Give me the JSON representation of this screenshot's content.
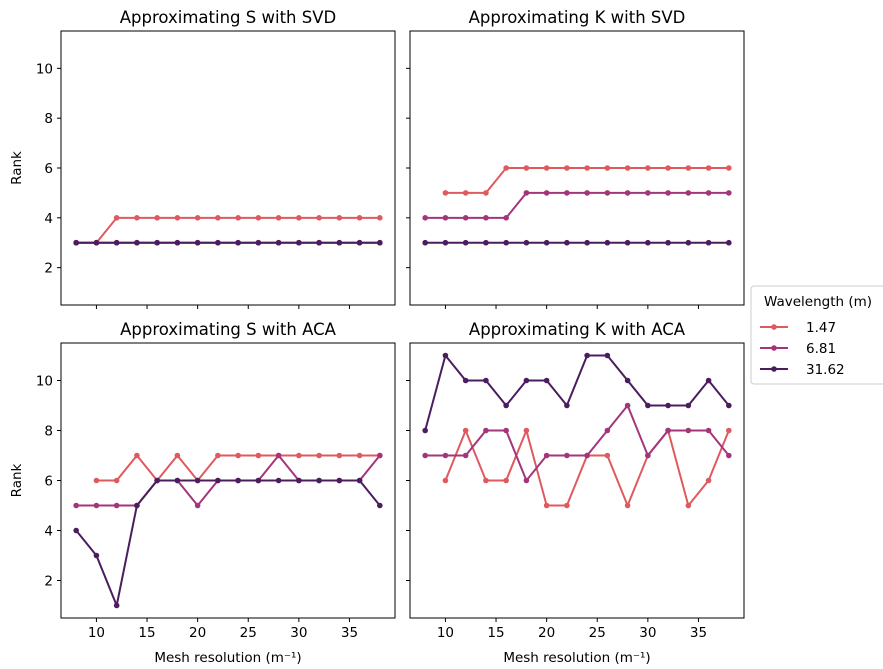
{
  "chart_data": {
    "type": "line",
    "grid": false,
    "legend": {
      "title": "Wavelength (m)",
      "placement": "right",
      "entries": [
        "1.47",
        "6.81",
        "31.62"
      ],
      "colors": [
        "#df5a5f",
        "#a3367b",
        "#4b1d5f"
      ]
    },
    "shared_x": {
      "label": "Mesh resolution (m⁻¹)",
      "ticks": [
        "10",
        "15",
        "20",
        "25",
        "30",
        "35"
      ],
      "tick_values": [
        10,
        15,
        20,
        25,
        30,
        35
      ],
      "range": [
        6.5,
        39.5
      ]
    },
    "shared_y": {
      "label": "Rank",
      "ticks": [
        "2",
        "4",
        "6",
        "8",
        "10"
      ],
      "tick_values": [
        2,
        4,
        6,
        8,
        10
      ],
      "range": [
        0.5,
        11.5
      ]
    },
    "panels": [
      {
        "title": "Approximating S with SVD",
        "series": [
          {
            "name": "1.47",
            "x": [
              8,
              10,
              12,
              14,
              16,
              18,
              20,
              22,
              24,
              26,
              28,
              30,
              32,
              34,
              36,
              38
            ],
            "y": [
              3,
              3,
              4,
              4,
              4,
              4,
              4,
              4,
              4,
              4,
              4,
              4,
              4,
              4,
              4,
              4
            ]
          },
          {
            "name": "6.81",
            "x": [
              8,
              10,
              12,
              14,
              16,
              18,
              20,
              22,
              24,
              26,
              28,
              30,
              32,
              34,
              36,
              38
            ],
            "y": [
              3,
              3,
              3,
              3,
              3,
              3,
              3,
              3,
              3,
              3,
              3,
              3,
              3,
              3,
              3,
              3
            ]
          },
          {
            "name": "31.62",
            "x": [
              8,
              10,
              12,
              14,
              16,
              18,
              20,
              22,
              24,
              26,
              28,
              30,
              32,
              34,
              36,
              38
            ],
            "y": [
              3,
              3,
              3,
              3,
              3,
              3,
              3,
              3,
              3,
              3,
              3,
              3,
              3,
              3,
              3,
              3
            ]
          }
        ]
      },
      {
        "title": "Approximating K with SVD",
        "series": [
          {
            "name": "1.47",
            "x": [
              10,
              12,
              14,
              16,
              18,
              20,
              22,
              24,
              26,
              28,
              30,
              32,
              34,
              36,
              38
            ],
            "y": [
              5,
              5,
              5,
              6,
              6,
              6,
              6,
              6,
              6,
              6,
              6,
              6,
              6,
              6,
              6
            ]
          },
          {
            "name": "6.81",
            "x": [
              8,
              10,
              12,
              14,
              16,
              18,
              20,
              22,
              24,
              26,
              28,
              30,
              32,
              34,
              36,
              38
            ],
            "y": [
              4,
              4,
              4,
              4,
              4,
              5,
              5,
              5,
              5,
              5,
              5,
              5,
              5,
              5,
              5,
              5
            ]
          },
          {
            "name": "31.62",
            "x": [
              8,
              10,
              12,
              14,
              16,
              18,
              20,
              22,
              24,
              26,
              28,
              30,
              32,
              34,
              36,
              38
            ],
            "y": [
              3,
              3,
              3,
              3,
              3,
              3,
              3,
              3,
              3,
              3,
              3,
              3,
              3,
              3,
              3,
              3
            ]
          }
        ]
      },
      {
        "title": "Approximating S with ACA",
        "series": [
          {
            "name": "1.47",
            "x": [
              10,
              12,
              14,
              16,
              18,
              20,
              22,
              24,
              26,
              28,
              30,
              32,
              34,
              36,
              38
            ],
            "y": [
              6,
              6,
              7,
              6,
              7,
              6,
              7,
              7,
              7,
              7,
              7,
              7,
              7,
              7,
              7
            ]
          },
          {
            "name": "6.81",
            "x": [
              8,
              10,
              12,
              14,
              16,
              18,
              20,
              22,
              24,
              26,
              28,
              30,
              32,
              34,
              36,
              38
            ],
            "y": [
              5,
              5,
              5,
              5,
              6,
              6,
              5,
              6,
              6,
              6,
              7,
              6,
              6,
              6,
              6,
              7
            ]
          },
          {
            "name": "31.62",
            "x": [
              8,
              10,
              12,
              14,
              16,
              18,
              20,
              22,
              24,
              26,
              28,
              30,
              32,
              34,
              36,
              38
            ],
            "y": [
              4,
              3,
              1,
              5,
              6,
              6,
              6,
              6,
              6,
              6,
              6,
              6,
              6,
              6,
              6,
              5
            ]
          }
        ]
      },
      {
        "title": "Approximating K with ACA",
        "series": [
          {
            "name": "1.47",
            "x": [
              10,
              12,
              14,
              16,
              18,
              20,
              22,
              24,
              26,
              28,
              30,
              32,
              34,
              36,
              38
            ],
            "y": [
              6,
              8,
              6,
              6,
              8,
              5,
              5,
              7,
              7,
              5,
              7,
              8,
              5,
              6,
              8
            ]
          },
          {
            "name": "6.81",
            "x": [
              8,
              10,
              12,
              14,
              16,
              18,
              20,
              22,
              24,
              26,
              28,
              30,
              32,
              34,
              36,
              38
            ],
            "y": [
              7,
              7,
              7,
              8,
              8,
              6,
              7,
              7,
              7,
              8,
              9,
              7,
              8,
              8,
              8,
              7
            ]
          },
          {
            "name": "31.62",
            "x": [
              8,
              10,
              12,
              14,
              16,
              18,
              20,
              22,
              24,
              26,
              28,
              30,
              32,
              34,
              36,
              38
            ],
            "y": [
              8,
              11,
              10,
              10,
              9,
              10,
              10,
              9,
              11,
              11,
              10,
              9,
              9,
              9,
              10,
              9
            ]
          }
        ]
      }
    ]
  }
}
